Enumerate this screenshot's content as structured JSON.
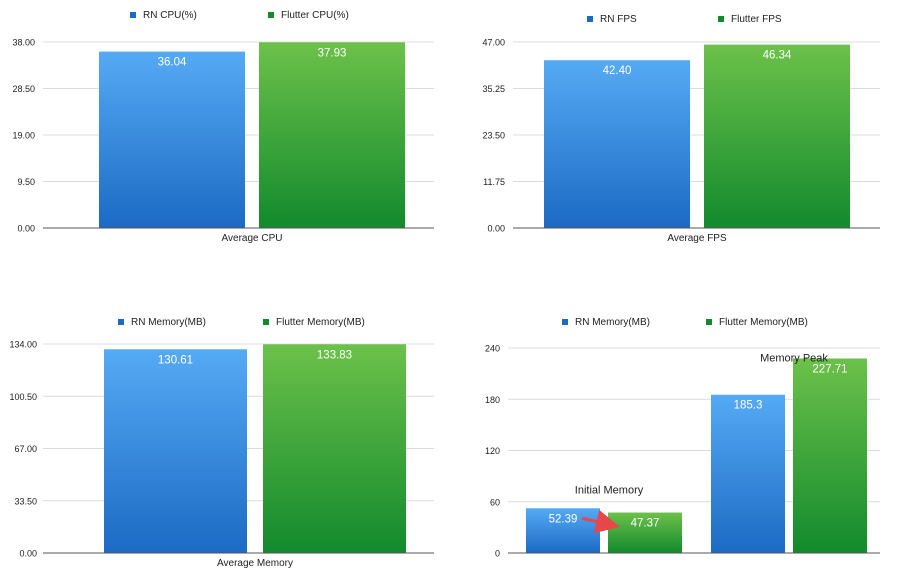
{
  "colors": {
    "rn_top": "#55aaf4",
    "rn_bottom": "#1c6ac4",
    "flutter_top": "#6cc14a",
    "flutter_bottom": "#128a2d",
    "grid": "#dcdcdc",
    "axis": "#555555",
    "text": "#222222",
    "label_text": "#ffffff",
    "arrow": "#e8474a"
  },
  "chart_data": [
    {
      "type": "bar",
      "title": "",
      "legend": [
        "RN CPU(%)",
        "Flutter CPU(%)"
      ],
      "legend_position": "top",
      "categories": [
        "Average CPU"
      ],
      "series": [
        {
          "name": "RN CPU(%)",
          "values": [
            36.04
          ],
          "labels": [
            "36.04"
          ]
        },
        {
          "name": "Flutter CPU(%)",
          "values": [
            37.93
          ],
          "labels": [
            "37.93"
          ]
        }
      ],
      "yticks": [
        "0.00",
        "9.50",
        "19.00",
        "28.50",
        "38.00"
      ],
      "ylim": [
        0,
        38
      ],
      "grid": true,
      "annotations": []
    },
    {
      "type": "bar",
      "title": "",
      "legend": [
        "RN FPS",
        "Flutter FPS"
      ],
      "legend_position": "top",
      "categories": [
        "Average FPS"
      ],
      "series": [
        {
          "name": "RN FPS",
          "values": [
            42.4
          ],
          "labels": [
            "42.40"
          ]
        },
        {
          "name": "Flutter FPS",
          "values": [
            46.34
          ],
          "labels": [
            "46.34"
          ]
        }
      ],
      "yticks": [
        "0.00",
        "11.75",
        "23.50",
        "35.25",
        "47.00"
      ],
      "ylim": [
        0,
        47
      ],
      "grid": true,
      "annotations": []
    },
    {
      "type": "bar",
      "title": "",
      "legend": [
        "RN Memory(MB)",
        "Flutter Memory(MB)"
      ],
      "legend_position": "top",
      "categories": [
        "Average Memory"
      ],
      "series": [
        {
          "name": "RN Memory(MB)",
          "values": [
            130.61
          ],
          "labels": [
            "130.61"
          ]
        },
        {
          "name": "Flutter Memory(MB)",
          "values": [
            133.83
          ],
          "labels": [
            "133.83"
          ]
        }
      ],
      "yticks": [
        "0.00",
        "33.50",
        "67.00",
        "100.50",
        "134.00"
      ],
      "ylim": [
        0,
        134
      ],
      "grid": true,
      "annotations": []
    },
    {
      "type": "bar",
      "title": "",
      "legend": [
        "RN Memory(MB)",
        "Flutter Memory(MB)"
      ],
      "legend_position": "top",
      "categories": [
        "",
        ""
      ],
      "series": [
        {
          "name": "RN Memory(MB)",
          "values": [
            52.39,
            185.3
          ],
          "labels": [
            "52.39",
            "185.3"
          ]
        },
        {
          "name": "Flutter Memory(MB)",
          "values": [
            47.37,
            227.71
          ],
          "labels": [
            "47.37",
            "227.71"
          ]
        }
      ],
      "yticks": [
        "0",
        "60",
        "120",
        "180",
        "240"
      ],
      "ylim": [
        0,
        240
      ],
      "grid": true,
      "annotations": [
        "Initial Memory",
        "Memory Peak"
      ]
    }
  ]
}
